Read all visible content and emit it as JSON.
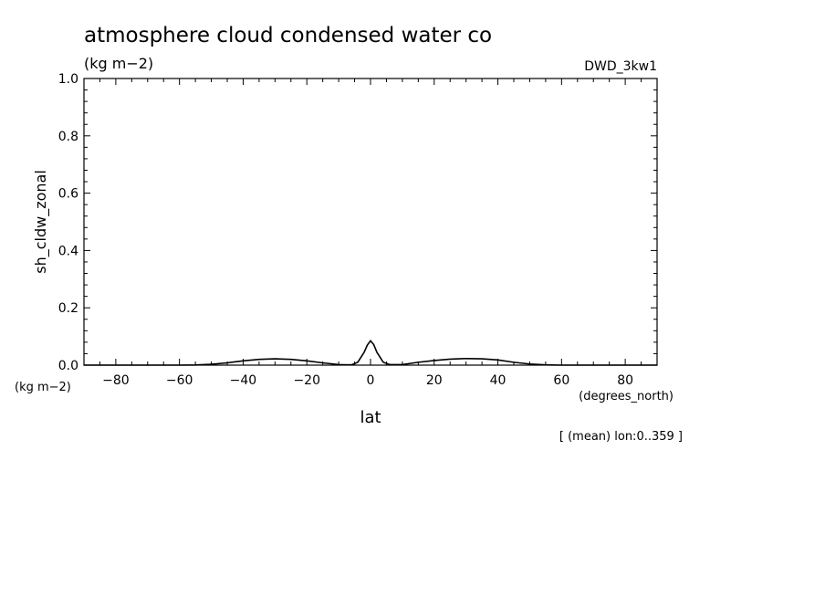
{
  "chart_data": {
    "type": "line",
    "title": "atmosphere cloud condensed water co",
    "subtitle": "(kg m−2)",
    "model": "DWD_3kw1",
    "ylabel": "sh_cldw_zonal",
    "y_units": "(kg m−2)",
    "xlabel": "lat",
    "x_units": "(degrees_north)",
    "note": "[ (mean) lon:0..359 ]",
    "xlim": [
      -90,
      90
    ],
    "ylim": [
      0,
      1.0
    ],
    "x_ticks": [
      -80,
      -60,
      -40,
      -20,
      0,
      20,
      40,
      60,
      80
    ],
    "x_tick_labels": [
      "−80",
      "−60",
      "−40",
      "−20",
      "0",
      "20",
      "40",
      "60",
      "80"
    ],
    "y_ticks": [
      0,
      0.2,
      0.4,
      0.6,
      0.8,
      1.0
    ],
    "y_tick_labels": [
      "0.0",
      "0.2",
      "0.4",
      "0.6",
      "0.8",
      "1.0"
    ],
    "grid": false,
    "color": "#000000",
    "series": [
      {
        "x": [
          -90,
          -70,
          -60,
          -55,
          -50,
          -45,
          -40,
          -35,
          -30,
          -25,
          -20,
          -15,
          -10,
          -6,
          -4,
          -2,
          -1,
          0,
          1,
          2,
          4,
          6,
          10,
          15,
          20,
          25,
          30,
          35,
          40,
          45,
          50,
          55,
          60,
          70,
          90
        ],
        "y": [
          0,
          0,
          0,
          0.0005,
          0.003,
          0.008,
          0.015,
          0.02,
          0.022,
          0.02,
          0.015,
          0.008,
          0.002,
          0.001,
          0.01,
          0.045,
          0.07,
          0.085,
          0.072,
          0.045,
          0.01,
          0.002,
          0.002,
          0.01,
          0.016,
          0.021,
          0.023,
          0.022,
          0.018,
          0.01,
          0.004,
          0.001,
          0,
          0,
          0
        ]
      }
    ]
  }
}
